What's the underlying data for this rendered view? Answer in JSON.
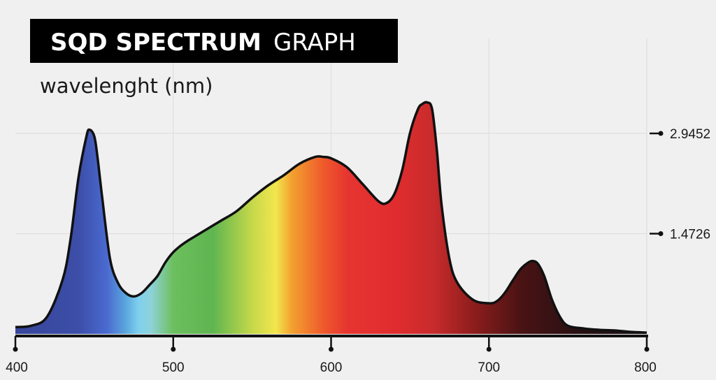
{
  "header": {
    "title_bold": "SQD SPECTRUM",
    "title_light": "GRAPH",
    "subtitle": "wavelenght (nm)"
  },
  "colors": {
    "background": "#f0f0f0",
    "title_box": "#000000",
    "curve_stroke": "#111111",
    "gridline": "#dcdcdc"
  },
  "chart_data": {
    "type": "area",
    "title": "SQD SPECTRUM GRAPH",
    "xlabel": "wavelenght (nm)",
    "ylabel": "",
    "xlim": [
      400,
      800
    ],
    "ylim": [
      0,
      3.6
    ],
    "x_ticks": [
      400,
      500,
      600,
      700,
      800
    ],
    "y_ticks": [
      1.4726,
      2.9452
    ],
    "x_tick_labels": [
      "400",
      "500",
      "600",
      "700",
      "800"
    ],
    "y_tick_labels": [
      "1.4726",
      "2.9452"
    ],
    "grid": true,
    "series": [
      {
        "x": [
          400,
          410,
          420,
          430,
          435,
          440,
          445,
          447,
          450,
          452,
          455,
          460,
          465,
          470,
          475,
          480,
          485,
          490,
          495,
          500,
          505,
          510,
          520,
          530,
          540,
          550,
          560,
          570,
          580,
          590,
          595,
          600,
          610,
          620,
          630,
          635,
          640,
          645,
          650,
          655,
          658,
          661,
          664,
          667,
          670,
          675,
          680,
          690,
          700,
          705,
          710,
          715,
          720,
          725,
          728,
          731,
          735,
          740,
          745,
          750,
          760,
          770,
          780,
          790,
          800
        ],
        "values": [
          0.1,
          0.12,
          0.25,
          0.8,
          1.4,
          2.3,
          2.9,
          3.0,
          2.9,
          2.6,
          2.0,
          1.1,
          0.75,
          0.6,
          0.55,
          0.6,
          0.72,
          0.85,
          1.05,
          1.2,
          1.3,
          1.38,
          1.52,
          1.66,
          1.8,
          2.0,
          2.18,
          2.33,
          2.5,
          2.6,
          2.6,
          2.58,
          2.45,
          2.2,
          1.95,
          1.92,
          2.05,
          2.4,
          2.95,
          3.3,
          3.38,
          3.4,
          3.3,
          2.7,
          1.9,
          1.1,
          0.75,
          0.5,
          0.45,
          0.48,
          0.6,
          0.78,
          0.95,
          1.05,
          1.07,
          1.03,
          0.85,
          0.5,
          0.25,
          0.12,
          0.08,
          0.06,
          0.05,
          0.03,
          0.02
        ]
      }
    ],
    "gradient_stops": [
      {
        "wl": 400,
        "color": "#37459a"
      },
      {
        "wl": 440,
        "color": "#3c4ea8"
      },
      {
        "wl": 458,
        "color": "#4a6ad0"
      },
      {
        "wl": 470,
        "color": "#5aa7dd"
      },
      {
        "wl": 478,
        "color": "#7fd0ef"
      },
      {
        "wl": 486,
        "color": "#8fd2d8"
      },
      {
        "wl": 500,
        "color": "#6dbf5e"
      },
      {
        "wl": 525,
        "color": "#5fb550"
      },
      {
        "wl": 550,
        "color": "#c5d84a"
      },
      {
        "wl": 565,
        "color": "#f2e64e"
      },
      {
        "wl": 575,
        "color": "#f3a12f"
      },
      {
        "wl": 595,
        "color": "#ef5a2b"
      },
      {
        "wl": 610,
        "color": "#e63530"
      },
      {
        "wl": 640,
        "color": "#e12c2f"
      },
      {
        "wl": 665,
        "color": "#c82b2c"
      },
      {
        "wl": 690,
        "color": "#8e1d1d"
      },
      {
        "wl": 720,
        "color": "#4a1314"
      },
      {
        "wl": 760,
        "color": "#251013"
      },
      {
        "wl": 800,
        "color": "#1a0f12"
      }
    ]
  }
}
